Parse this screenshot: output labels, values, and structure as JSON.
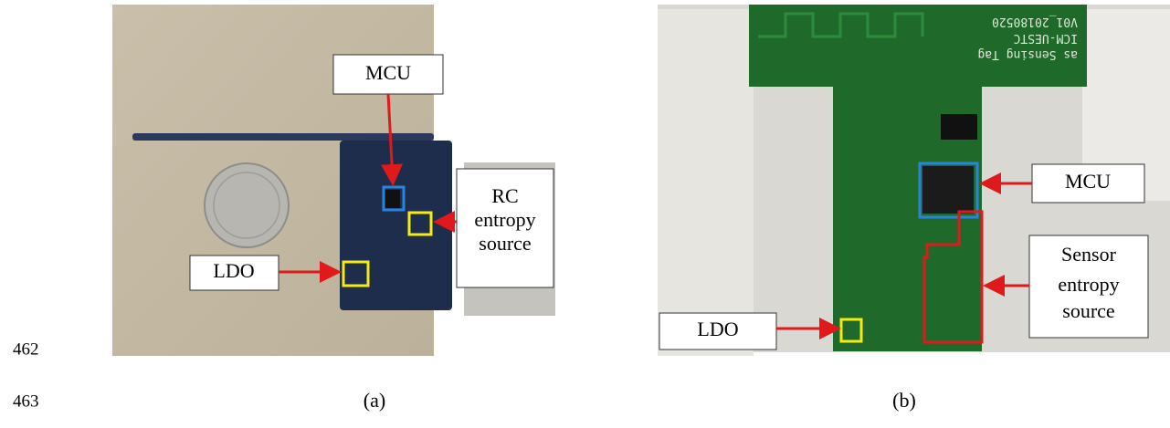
{
  "line_numbers": [
    "462",
    "463"
  ],
  "panels": [
    {
      "caption": "(a)",
      "labels": {
        "mcu": [
          "MCU"
        ],
        "entropy": [
          "RC",
          "entropy",
          "source"
        ],
        "ldo": [
          "LDO"
        ]
      }
    },
    {
      "caption": "(b)",
      "labels": {
        "mcu": [
          "MCU"
        ],
        "entropy": [
          "Sensor",
          "entropy",
          "source"
        ],
        "ldo": [
          "LDO"
        ]
      },
      "board_text": [
        "as Sensing Tag",
        "ICM-UESTC",
        "V01_20180520"
      ]
    }
  ]
}
